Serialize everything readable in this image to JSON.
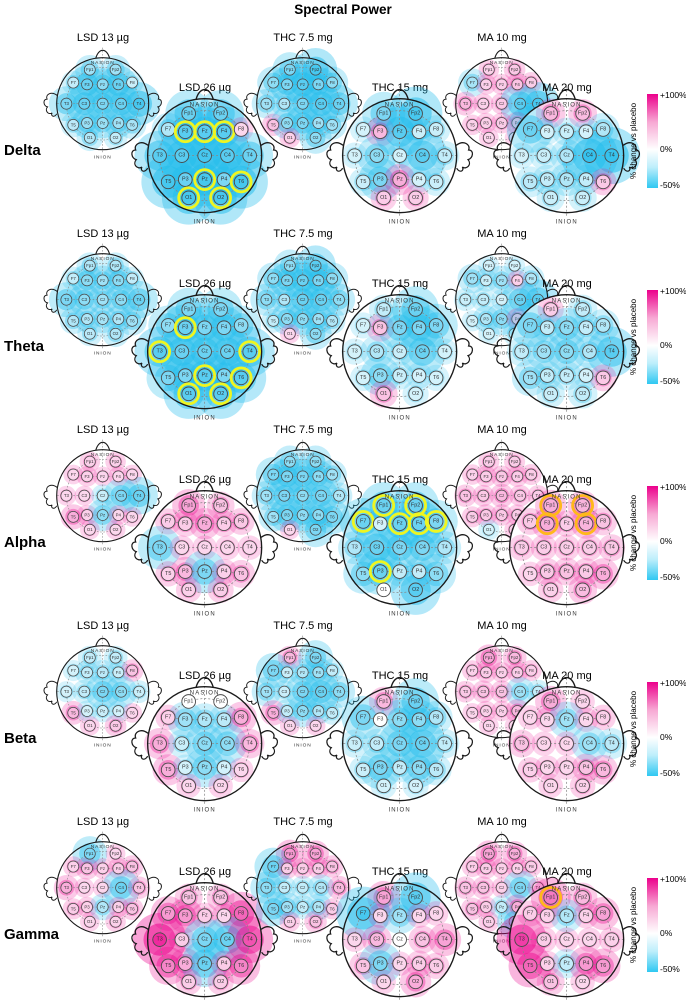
{
  "chart_data": {
    "type": "heatmap",
    "title": "Spectral Power",
    "bands": [
      "Delta",
      "Theta",
      "Alpha",
      "Beta",
      "Gamma"
    ],
    "head_labels": {
      "top": "NASION",
      "bottom": "INION"
    },
    "electrodes": [
      "Fp1",
      "Fp2",
      "F7",
      "F3",
      "Fz",
      "F4",
      "F8",
      "T3",
      "C3",
      "Cz",
      "C4",
      "T4",
      "T5",
      "P3",
      "Pz",
      "P4",
      "T6",
      "O1",
      "O2"
    ],
    "conditions": [
      {
        "drug": "LSD",
        "low_label": "LSD 13 µg",
        "high_label": "LSD 26 µg",
        "ring_color": "#eef522"
      },
      {
        "drug": "THC",
        "low_label": "THC 7.5 mg",
        "high_label": "THC 15 mg",
        "ring_color": "#eef522"
      },
      {
        "drug": "MA",
        "low_label": "MA 10 mg",
        "high_label": "MA 20 mg",
        "ring_color": "#ffb81c"
      }
    ],
    "colorbar": {
      "label": "% change vs placebo",
      "ticks": [
        "+100%",
        "0%",
        "-50%"
      ],
      "max": 100,
      "min": -50,
      "positive_color": "#ec008c",
      "negative_color": "#24bdec"
    },
    "values": {
      "Delta": {
        "LSD 13 µg": [
          -20,
          -20,
          -10,
          -35,
          -25,
          -35,
          -8,
          -30,
          -35,
          -30,
          -35,
          -45,
          -12,
          -22,
          -22,
          -20,
          -18,
          -15,
          -10
        ],
        "LSD 26 µg": [
          -35,
          -35,
          -15,
          -40,
          -40,
          -40,
          5,
          -40,
          -40,
          -45,
          -40,
          -35,
          -45,
          -35,
          -45,
          -30,
          -45,
          -45,
          -45
        ],
        "THC 7.5 mg": [
          -30,
          -45,
          -25,
          -30,
          -40,
          -30,
          -25,
          -20,
          -15,
          -30,
          -40,
          -35,
          15,
          -25,
          -30,
          -20,
          -20,
          8,
          -25
        ],
        "THC 15 mg": [
          -30,
          -45,
          -5,
          20,
          -40,
          -8,
          -8,
          -5,
          -25,
          -5,
          -40,
          -10,
          -8,
          -30,
          25,
          -5,
          -8,
          10,
          10
        ],
        "MA 10 mg": [
          8,
          12,
          -18,
          8,
          10,
          15,
          10,
          20,
          8,
          12,
          -40,
          -45,
          8,
          8,
          10,
          15,
          10,
          5,
          5
        ],
        "MA 20 mg": [
          20,
          18,
          -35,
          -5,
          -8,
          -5,
          -15,
          -5,
          -8,
          -15,
          -50,
          -50,
          -12,
          -10,
          -15,
          -10,
          12,
          -8,
          -8
        ]
      },
      "Theta": {
        "LSD 13 µg": [
          -15,
          -15,
          -10,
          -25,
          -20,
          -25,
          -10,
          -30,
          -25,
          -20,
          -25,
          -35,
          -15,
          -15,
          -18,
          -15,
          -20,
          -12,
          -15
        ],
        "LSD 26 µg": [
          -30,
          -30,
          -25,
          -35,
          -30,
          -30,
          -25,
          -40,
          -35,
          -35,
          -35,
          -40,
          -30,
          -30,
          -40,
          -30,
          -40,
          -40,
          -40
        ],
        "THC 7.5 mg": [
          -25,
          -40,
          -25,
          -30,
          -35,
          -30,
          -25,
          -25,
          -15,
          -35,
          -35,
          -25,
          -10,
          -25,
          -25,
          -20,
          -15,
          5,
          -25
        ],
        "THC 15 mg": [
          -10,
          -35,
          -5,
          15,
          -30,
          -30,
          -30,
          -5,
          -15,
          -8,
          -35,
          -5,
          -5,
          -25,
          -8,
          -5,
          -5,
          15,
          -5
        ],
        "MA 10 mg": [
          -5,
          -5,
          -20,
          -8,
          -20,
          8,
          -15,
          -8,
          -10,
          -5,
          -35,
          -40,
          -5,
          -15,
          -25,
          12,
          -8,
          -5,
          -10
        ],
        "MA 20 mg": [
          10,
          -10,
          -30,
          -10,
          -25,
          -10,
          -15,
          -10,
          -20,
          -25,
          -15,
          -40,
          -20,
          -10,
          -10,
          -5,
          12,
          -8,
          -10
        ]
      },
      "Alpha": {
        "LSD 13 µg": [
          8,
          8,
          5,
          8,
          5,
          5,
          5,
          5,
          5,
          -8,
          -30,
          -35,
          25,
          8,
          -25,
          5,
          5,
          5,
          5
        ],
        "LSD 26 µg": [
          30,
          15,
          10,
          10,
          25,
          10,
          12,
          -30,
          5,
          5,
          5,
          5,
          8,
          20,
          -30,
          8,
          15,
          8,
          10
        ],
        "THC 7.5 mg": [
          -25,
          -25,
          -30,
          -30,
          -30,
          -25,
          -20,
          -20,
          -30,
          -25,
          -30,
          -15,
          -20,
          -30,
          -25,
          -25,
          -30,
          5,
          -30
        ],
        "THC 15 mg": [
          -35,
          -35,
          -35,
          -5,
          -35,
          -35,
          -30,
          -15,
          -35,
          -30,
          -30,
          -15,
          -25,
          -35,
          -10,
          -10,
          -25,
          0,
          -40
        ],
        "MA 10 mg": [
          10,
          10,
          8,
          10,
          12,
          10,
          10,
          15,
          12,
          20,
          12,
          10,
          10,
          12,
          12,
          10,
          10,
          -5,
          8
        ],
        "MA 20 mg": [
          25,
          22,
          12,
          25,
          10,
          22,
          15,
          10,
          10,
          10,
          10,
          12,
          5,
          12,
          15,
          12,
          25,
          8,
          18
        ]
      },
      "Beta": {
        "LSD 13 µg": [
          -10,
          -10,
          -5,
          -10,
          -12,
          -8,
          15,
          -5,
          -10,
          -30,
          -25,
          -8,
          20,
          -5,
          -8,
          -5,
          5,
          5,
          12
        ],
        "LSD 26 µg": [
          0,
          0,
          8,
          -20,
          -15,
          -12,
          25,
          25,
          -8,
          -25,
          -25,
          20,
          25,
          -5,
          -25,
          -5,
          5,
          5,
          5
        ],
        "THC 7.5 mg": [
          20,
          -30,
          -30,
          -8,
          -15,
          -20,
          -10,
          -20,
          -8,
          -30,
          -35,
          -25,
          25,
          -10,
          -25,
          -15,
          -10,
          5,
          5
        ],
        "THC 15 mg": [
          20,
          -35,
          -30,
          0,
          -25,
          -25,
          -15,
          -8,
          -10,
          -30,
          -35,
          -10,
          -8,
          -30,
          -10,
          -25,
          -12,
          -5,
          -5
        ],
        "MA 10 mg": [
          30,
          20,
          8,
          10,
          8,
          10,
          10,
          12,
          15,
          15,
          -20,
          -10,
          5,
          8,
          8,
          20,
          8,
          5,
          5
        ],
        "MA 20 mg": [
          25,
          5,
          5,
          5,
          -20,
          5,
          8,
          15,
          5,
          5,
          -20,
          -12,
          8,
          5,
          5,
          15,
          20,
          5,
          8
        ]
      },
      "Gamma": {
        "LSD 13 µg": [
          -30,
          5,
          8,
          15,
          8,
          10,
          15,
          25,
          5,
          5,
          -35,
          15,
          10,
          8,
          -15,
          8,
          15,
          5,
          8
        ],
        "LSD 26 µg": [
          15,
          15,
          35,
          35,
          10,
          5,
          60,
          90,
          10,
          -30,
          -35,
          70,
          45,
          25,
          -35,
          10,
          45,
          10,
          10
        ],
        "THC 7.5 mg": [
          35,
          30,
          -35,
          10,
          10,
          10,
          15,
          -25,
          -10,
          -10,
          -15,
          20,
          -30,
          -20,
          -10,
          -15,
          10,
          8,
          15
        ],
        "THC 15 mg": [
          30,
          -40,
          -45,
          5,
          -20,
          5,
          5,
          5,
          20,
          0,
          15,
          30,
          15,
          -30,
          5,
          10,
          10,
          5,
          25
        ],
        "MA 10 mg": [
          30,
          25,
          10,
          10,
          8,
          8,
          10,
          15,
          15,
          8,
          -30,
          10,
          15,
          10,
          -10,
          25,
          10,
          8,
          -30
        ],
        "MA 20 mg": [
          50,
          20,
          10,
          8,
          -15,
          8,
          30,
          80,
          10,
          5,
          5,
          8,
          60,
          8,
          -10,
          35,
          35,
          15,
          5
        ]
      }
    },
    "significant": {
      "Delta": {
        "LSD 26 µg": [
          "F3",
          "Fz",
          "F4",
          "Pz",
          "T6",
          "O1",
          "O2"
        ]
      },
      "Theta": {
        "LSD 26 µg": [
          "F3",
          "T3",
          "T4",
          "Pz",
          "T6",
          "O1",
          "O2"
        ]
      },
      "Alpha": {
        "THC 15 mg": [
          "Fp1",
          "Fp2",
          "F7",
          "Fz",
          "F4",
          "F8",
          "P3"
        ],
        "MA 20 mg": [
          "Fp1",
          "Fp2",
          "F3",
          "F4"
        ]
      },
      "Beta": {},
      "Gamma": {
        "MA 20 mg": [
          "Fp1"
        ]
      }
    }
  }
}
